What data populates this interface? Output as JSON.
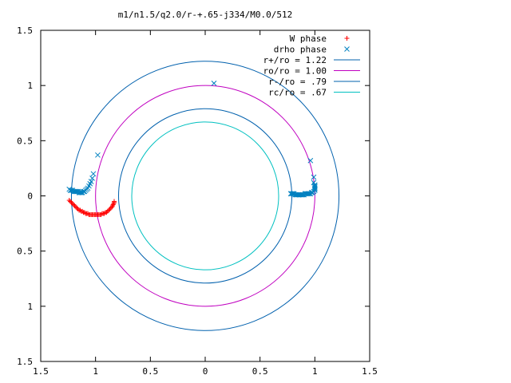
{
  "chart_data": {
    "type": "scatter",
    "title": "m1/n1.5/q2.0/r-+.65-j334/M0.0/512",
    "xlabel": "",
    "ylabel": "",
    "xlim": [
      -1.5,
      1.5
    ],
    "ylim": [
      -1.5,
      1.5
    ],
    "xticks": [
      -1.5,
      -1,
      -0.5,
      0,
      0.5,
      1,
      1.5
    ],
    "xtick_labels": [
      "1.5",
      "1",
      "0.5",
      "0",
      "0.5",
      "1",
      "1.5"
    ],
    "yticks": [
      1.5,
      1,
      0.5,
      0,
      -0.5,
      -1,
      -1.5
    ],
    "ytick_labels": [
      "1.5",
      "1",
      "0.5",
      "0",
      "0.5",
      "1",
      "1.5"
    ],
    "grid": false,
    "legend_position": "top-right",
    "series": [
      {
        "name": "W phase",
        "marker": "+",
        "color": "#ff0000",
        "points": [
          [
            -1.24,
            -0.04
          ],
          [
            -1.23,
            -0.05
          ],
          [
            -1.22,
            -0.06
          ],
          [
            -1.21,
            -0.07
          ],
          [
            -1.2,
            -0.08
          ],
          [
            -1.19,
            -0.09
          ],
          [
            -1.18,
            -0.1
          ],
          [
            -1.17,
            -0.11
          ],
          [
            -1.16,
            -0.12
          ],
          [
            -1.15,
            -0.13
          ],
          [
            -1.14,
            -0.13
          ],
          [
            -1.13,
            -0.14
          ],
          [
            -1.12,
            -0.14
          ],
          [
            -1.11,
            -0.15
          ],
          [
            -1.1,
            -0.15
          ],
          [
            -1.09,
            -0.16
          ],
          [
            -1.08,
            -0.16
          ],
          [
            -1.07,
            -0.16
          ],
          [
            -1.06,
            -0.17
          ],
          [
            -1.05,
            -0.17
          ],
          [
            -1.04,
            -0.17
          ],
          [
            -1.03,
            -0.17
          ],
          [
            -1.02,
            -0.17
          ],
          [
            -1.01,
            -0.17
          ],
          [
            -1.0,
            -0.17
          ],
          [
            -0.99,
            -0.17
          ],
          [
            -0.98,
            -0.17
          ],
          [
            -0.97,
            -0.17
          ],
          [
            -0.96,
            -0.17
          ],
          [
            -0.95,
            -0.17
          ],
          [
            -0.94,
            -0.16
          ],
          [
            -0.93,
            -0.16
          ],
          [
            -0.92,
            -0.16
          ],
          [
            -0.91,
            -0.15
          ],
          [
            -0.9,
            -0.15
          ],
          [
            -0.89,
            -0.14
          ],
          [
            -0.88,
            -0.13
          ],
          [
            -0.87,
            -0.12
          ],
          [
            -0.86,
            -0.11
          ],
          [
            -0.85,
            -0.1
          ],
          [
            -0.845,
            -0.09
          ],
          [
            -0.84,
            -0.08
          ],
          [
            -0.835,
            -0.07
          ],
          [
            -0.83,
            -0.06
          ],
          [
            -0.83,
            -0.05
          ]
        ]
      },
      {
        "name": "drho phase",
        "marker": "x",
        "color": "#0080c0",
        "points": [
          [
            -1.24,
            0.06
          ],
          [
            -1.23,
            0.05
          ],
          [
            -1.22,
            0.05
          ],
          [
            -1.21,
            0.05
          ],
          [
            -1.2,
            0.04
          ],
          [
            -1.19,
            0.04
          ],
          [
            -1.18,
            0.04
          ],
          [
            -1.17,
            0.04
          ],
          [
            -1.16,
            0.04
          ],
          [
            -1.15,
            0.03
          ],
          [
            -1.14,
            0.03
          ],
          [
            -1.13,
            0.03
          ],
          [
            -1.12,
            0.03
          ],
          [
            -1.11,
            0.04
          ],
          [
            -1.1,
            0.04
          ],
          [
            -1.09,
            0.05
          ],
          [
            -1.08,
            0.06
          ],
          [
            -1.07,
            0.07
          ],
          [
            -1.06,
            0.09
          ],
          [
            -1.05,
            0.11
          ],
          [
            -1.04,
            0.13
          ],
          [
            -1.03,
            0.16
          ],
          [
            -1.02,
            0.2
          ],
          [
            -0.98,
            0.37
          ],
          [
            0.08,
            1.02
          ],
          [
            0.78,
            0.02
          ],
          [
            0.79,
            0.02
          ],
          [
            0.8,
            0.02
          ],
          [
            0.81,
            0.02
          ],
          [
            0.82,
            0.01
          ],
          [
            0.83,
            0.01
          ],
          [
            0.84,
            0.01
          ],
          [
            0.85,
            0.01
          ],
          [
            0.86,
            0.01
          ],
          [
            0.87,
            0.01
          ],
          [
            0.88,
            0.01
          ],
          [
            0.89,
            0.01
          ],
          [
            0.9,
            0.01
          ],
          [
            0.91,
            0.02
          ],
          [
            0.92,
            0.02
          ],
          [
            0.93,
            0.02
          ],
          [
            0.94,
            0.02
          ],
          [
            0.95,
            0.02
          ],
          [
            0.96,
            0.02
          ],
          [
            0.97,
            0.03
          ],
          [
            0.98,
            0.03
          ],
          [
            0.99,
            0.04
          ],
          [
            1.0,
            0.05
          ],
          [
            1.0,
            0.06
          ],
          [
            1.0,
            0.07
          ],
          [
            1.0,
            0.08
          ],
          [
            1.0,
            0.09
          ],
          [
            1.0,
            0.1
          ],
          [
            0.99,
            0.12
          ],
          [
            0.99,
            0.17
          ],
          [
            0.96,
            0.32
          ]
        ]
      }
    ],
    "circles": [
      {
        "name": "r+/ro = 1.22",
        "radius": 1.22,
        "color": "#0060ad"
      },
      {
        "name": "ro/ro = 1.00",
        "radius": 1.0,
        "color": "#c000c0"
      },
      {
        "name": "r-/ro = .79",
        "radius": 0.79,
        "color": "#0060ad"
      },
      {
        "name": "rc/ro = .67",
        "radius": 0.67,
        "color": "#00c0c0"
      }
    ]
  }
}
